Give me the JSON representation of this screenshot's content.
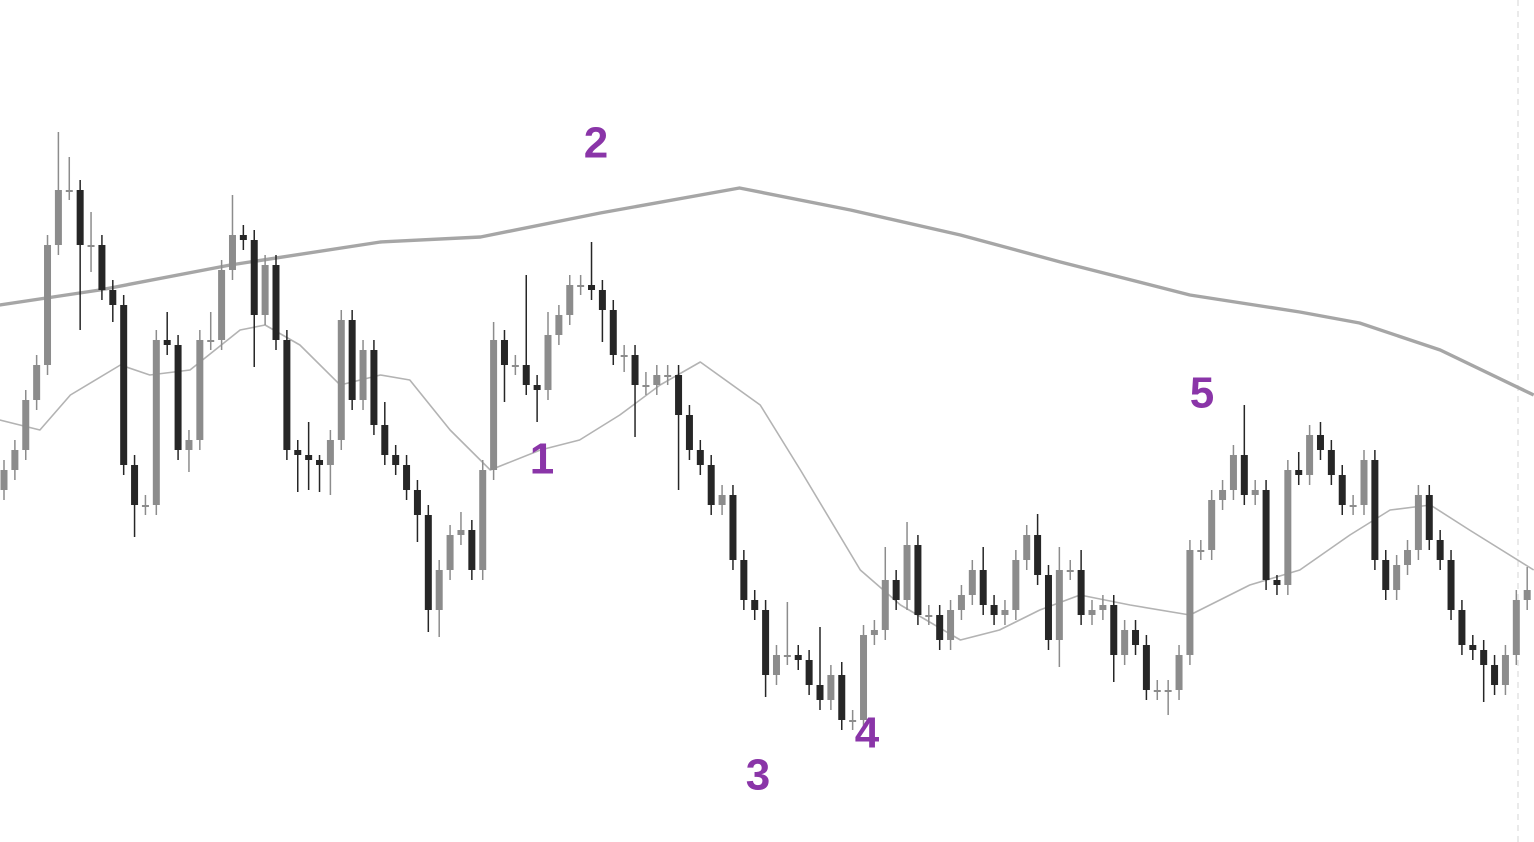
{
  "chart_data": {
    "type": "candlestick",
    "ylim": [
      0,
      842
    ],
    "colors": {
      "up": "#8c8c8c",
      "down": "#262626"
    },
    "annotations": [
      "1",
      "2",
      "3",
      "4",
      "5"
    ],
    "open": [
      352,
      372,
      392,
      442,
      477,
      597,
      652,
      652,
      597,
      597,
      552,
      537,
      377,
      337,
      337,
      502,
      497,
      392,
      402,
      502,
      502,
      572,
      607,
      602,
      527,
      577,
      502,
      392,
      387,
      382,
      377,
      402,
      522,
      442,
      492,
      417,
      387,
      377,
      352,
      327,
      232,
      272,
      307,
      312,
      272,
      372,
      502,
      477,
      477,
      457,
      452,
      507,
      527,
      557,
      557,
      552,
      532,
      487,
      487,
      457,
      457,
      467,
      467,
      427,
      392,
      377,
      337,
      347,
      282,
      242,
      232,
      167,
      187,
      187,
      182,
      157,
      142,
      167,
      122,
      122,
      207,
      212,
      262,
      242,
      297,
      227,
      227,
      202,
      232,
      247,
      272,
      237,
      227,
      232,
      282,
      307,
      267,
      202,
      272,
      272,
      227,
      232,
      237,
      187,
      212,
      197,
      152,
      152,
      152,
      187,
      292,
      292,
      342,
      352,
      387,
      347,
      352,
      262,
      257,
      372,
      367,
      407,
      392,
      367,
      337,
      337,
      382,
      282,
      252,
      277,
      292,
      347,
      302,
      282,
      232,
      197,
      192,
      177,
      157,
      187,
      242
    ],
    "high": [
      382,
      402,
      452,
      487,
      607,
      710,
      685,
      662,
      630,
      607,
      562,
      547,
      387,
      347,
      512,
      530,
      507,
      412,
      512,
      530,
      582,
      647,
      617,
      612,
      587,
      587,
      512,
      402,
      420,
      387,
      412,
      532,
      532,
      502,
      502,
      440,
      397,
      387,
      362,
      337,
      282,
      317,
      330,
      322,
      382,
      520,
      512,
      487,
      567,
      467,
      530,
      537,
      567,
      567,
      600,
      562,
      542,
      497,
      497,
      470,
      477,
      477,
      477,
      437,
      402,
      387,
      357,
      357,
      292,
      252,
      242,
      197,
      240,
      197,
      192,
      215,
      177,
      180,
      132,
      217,
      222,
      295,
      272,
      320,
      307,
      237,
      237,
      242,
      257,
      282,
      295,
      247,
      242,
      292,
      317,
      328,
      277,
      295,
      282,
      292,
      242,
      247,
      247,
      222,
      222,
      207,
      162,
      162,
      197,
      302,
      302,
      352,
      362,
      397,
      437,
      362,
      362,
      267,
      382,
      390,
      417,
      420,
      402,
      377,
      347,
      392,
      392,
      292,
      287,
      302,
      357,
      357,
      312,
      292,
      242,
      207,
      202,
      187,
      197,
      252,
      275
    ],
    "low": [
      342,
      362,
      382,
      432,
      467,
      587,
      642,
      512,
      570,
      542,
      520,
      367,
      305,
      327,
      327,
      487,
      382,
      370,
      392,
      492,
      492,
      562,
      592,
      475,
      517,
      492,
      382,
      350,
      352,
      350,
      347,
      392,
      432,
      432,
      407,
      377,
      367,
      342,
      300,
      210,
      205,
      262,
      297,
      262,
      262,
      362,
      440,
      467,
      447,
      420,
      442,
      497,
      517,
      547,
      542,
      500,
      477,
      470,
      405,
      447,
      447,
      457,
      352,
      382,
      367,
      327,
      327,
      272,
      232,
      222,
      145,
      157,
      177,
      172,
      147,
      132,
      132,
      112,
      112,
      112,
      197,
      202,
      232,
      232,
      217,
      217,
      192,
      192,
      222,
      237,
      227,
      217,
      217,
      222,
      272,
      257,
      192,
      175,
      262,
      217,
      217,
      222,
      160,
      177,
      187,
      142,
      142,
      127,
      142,
      177,
      282,
      282,
      332,
      342,
      337,
      337,
      252,
      247,
      247,
      357,
      357,
      382,
      357,
      327,
      327,
      327,
      272,
      242,
      242,
      267,
      282,
      292,
      272,
      222,
      187,
      182,
      140,
      147,
      147,
      177,
      232
    ],
    "close": [
      372,
      392,
      442,
      477,
      597,
      652,
      652,
      597,
      597,
      552,
      537,
      377,
      337,
      337,
      502,
      497,
      392,
      402,
      502,
      502,
      572,
      607,
      602,
      527,
      577,
      502,
      392,
      387,
      382,
      377,
      402,
      522,
      442,
      492,
      417,
      387,
      377,
      352,
      327,
      232,
      272,
      307,
      312,
      272,
      372,
      502,
      477,
      477,
      457,
      452,
      507,
      527,
      557,
      557,
      552,
      532,
      487,
      487,
      457,
      457,
      467,
      467,
      427,
      392,
      377,
      337,
      347,
      282,
      242,
      232,
      167,
      187,
      187,
      182,
      157,
      142,
      167,
      122,
      122,
      207,
      212,
      262,
      242,
      297,
      227,
      227,
      202,
      232,
      247,
      272,
      237,
      227,
      232,
      282,
      307,
      267,
      202,
      272,
      272,
      227,
      232,
      237,
      187,
      212,
      197,
      152,
      152,
      152,
      187,
      292,
      292,
      342,
      352,
      387,
      347,
      352,
      262,
      257,
      372,
      367,
      407,
      392,
      367,
      337,
      337,
      382,
      282,
      252,
      277,
      292,
      347,
      302,
      282,
      232,
      197,
      192,
      177,
      157,
      187,
      242,
      252
    ],
    "overlays": [
      {
        "color": "#b3b3b3",
        "width": 1.6,
        "x": [
          -0.4,
          3.3,
          6.1,
          10.7,
          13.4,
          17.1,
          21.7,
          24.0,
          27.2,
          30.9,
          34.6,
          37.3,
          41.0,
          44.7,
          49.3,
          52.9,
          56.6,
          60.3,
          64.0,
          69.5,
          73.2,
          78.7,
          82.4,
          87.9,
          91.5,
          95.2,
          98.9,
          103.5,
          109.0,
          114.5,
          119.1,
          123.7,
          127.4,
          131.1,
          134.7,
          140.6
        ],
        "values": [
          422,
          412,
          447,
          477,
          467,
          472,
          512,
          517,
          497,
          457,
          467,
          462,
          412,
          372,
          392,
          402,
          427,
          457,
          480,
          437,
          372,
          272,
          237,
          202,
          212,
          232,
          247,
          237,
          227,
          257,
          272,
          307,
          332,
          337,
          312,
          272
        ]
      },
      {
        "color": "#a6a6a6",
        "width": 3.4,
        "x": [
          -0.4,
          8.8,
          20.8,
          34.6,
          43.8,
          54.8,
          67.6,
          77.8,
          87.9,
          97.1,
          109.0,
          119.1,
          124.6,
          132.0,
          140.6
        ],
        "values": [
          537,
          552,
          577,
          600,
          605,
          629,
          654,
          632,
          607,
          580,
          547,
          530,
          519,
          492,
          447
        ]
      }
    ]
  }
}
